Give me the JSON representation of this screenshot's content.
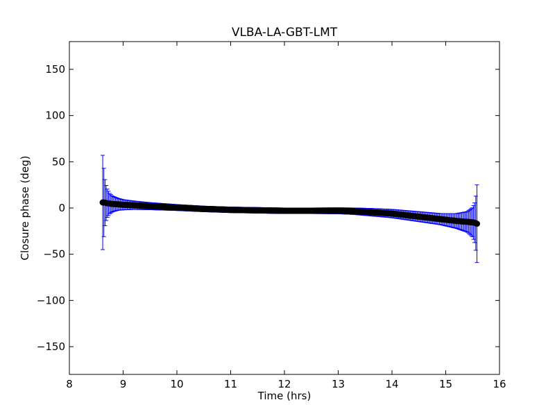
{
  "chart_data": {
    "type": "scatter",
    "title": "VLBA-LA-GBT-LMT",
    "xlabel": "Time (hrs)",
    "ylabel": "Closure phase (deg)",
    "xlim": [
      8,
      16
    ],
    "ylim": [
      -180,
      180
    ],
    "xticks": [
      "8",
      "9",
      "10",
      "11",
      "12",
      "13",
      "14",
      "15",
      "16"
    ],
    "yticks": [
      "−150",
      "−100",
      "−50",
      "0",
      "50",
      "100",
      "150"
    ],
    "grid": false,
    "series": [
      {
        "marker_color": "#000000",
        "errorbar_color": "#0000ff",
        "x": [
          8.62,
          8.64,
          8.66,
          8.68,
          8.7,
          8.75,
          8.8,
          8.9,
          9.0,
          9.2,
          9.5,
          10.0,
          10.5,
          11.0,
          11.5,
          12.0,
          12.5,
          13.0,
          13.3,
          13.6,
          14.0,
          14.3,
          14.6,
          14.9,
          15.2,
          15.4,
          15.5,
          15.54,
          15.56,
          15.58
        ],
        "y": [
          6,
          6,
          5.8,
          5.5,
          5.2,
          4.8,
          4.4,
          4,
          3.5,
          3,
          2,
          0.5,
          -1,
          -2,
          -2.5,
          -3,
          -3,
          -3,
          -3.5,
          -4.5,
          -6,
          -8,
          -10,
          -12,
          -14,
          -15,
          -15.5,
          -16,
          -16.5,
          -17
        ],
        "err": [
          51,
          38,
          26,
          20,
          16,
          11,
          8.5,
          6.5,
          5.5,
          4.5,
          3.8,
          3.2,
          3,
          3,
          3,
          3,
          3,
          3.2,
          3.5,
          4,
          4.5,
          5,
          5.5,
          6,
          8,
          11,
          16,
          22,
          30,
          42
        ]
      }
    ]
  }
}
